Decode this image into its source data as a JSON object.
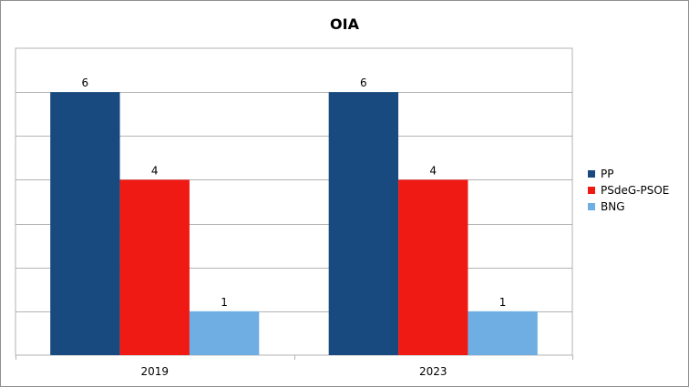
{
  "chart_data": {
    "type": "bar",
    "title": "OIA",
    "xlabel": "",
    "ylabel": "",
    "categories": [
      "2019",
      "2023"
    ],
    "series": [
      {
        "name": "PP",
        "values": [
          6,
          6
        ],
        "color": "#184a80"
      },
      {
        "name": "PSdeG-PSOE",
        "values": [
          4,
          4
        ],
        "color": "#f01a14"
      },
      {
        "name": "BNG",
        "values": [
          1,
          1
        ],
        "color": "#6eaee2"
      }
    ],
    "ylim": [
      0,
      7
    ],
    "grid": true,
    "show_y_tick_labels": false,
    "data_labels": true,
    "legend_position": "right"
  }
}
